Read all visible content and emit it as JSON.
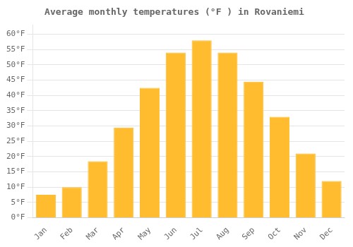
{
  "chart_data": {
    "type": "bar",
    "title": "Average monthly temperatures (°F ) in Rovaniemi",
    "categories": [
      "Jan",
      "Feb",
      "Mar",
      "Apr",
      "May",
      "Jun",
      "Jul",
      "Aug",
      "Sep",
      "Oct",
      "Nov",
      "Dec"
    ],
    "values": [
      7.5,
      10,
      18.5,
      29.5,
      42.5,
      54,
      58,
      54,
      44.5,
      33,
      21,
      12
    ],
    "color": "#FFBC2E",
    "ylim": [
      0,
      63
    ],
    "yticks": [
      {
        "value": 0,
        "label": "0°F"
      },
      {
        "value": 5,
        "label": "5°F"
      },
      {
        "value": 10,
        "label": "10°F"
      },
      {
        "value": 15,
        "label": "15°F"
      },
      {
        "value": 20,
        "label": "20°F"
      },
      {
        "value": 25,
        "label": "25°F"
      },
      {
        "value": 30,
        "label": "30°F"
      },
      {
        "value": 35,
        "label": "35°F"
      },
      {
        "value": 40,
        "label": "40°F"
      },
      {
        "value": 45,
        "label": "45°F"
      },
      {
        "value": 50,
        "label": "50°F"
      },
      {
        "value": 55,
        "label": "55°F"
      },
      {
        "value": 60,
        "label": "60°F"
      }
    ],
    "grid": true
  }
}
